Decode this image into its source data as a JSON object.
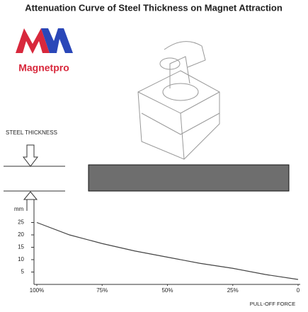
{
  "chart_data": {
    "type": "line",
    "title": "Attenuation Curve of Steel Thickness on Magnet Attraction",
    "brand": "Magnetpro",
    "annotations": [
      "STEEL THICKNESS"
    ],
    "y_label": "mm",
    "x_label": "PULL-OFF FORCE",
    "x": [
      100,
      87.5,
      75,
      62.5,
      50,
      37.5,
      25,
      12.5,
      0
    ],
    "series": [
      {
        "name": "Steel thickness",
        "color": "#444444",
        "values": [
          25,
          20,
          16.5,
          13.5,
          11,
          8.5,
          6.5,
          4,
          2
        ]
      }
    ],
    "xlim": [
      100,
      0
    ],
    "ylim": [
      0,
      30
    ],
    "xticks": [
      {
        "value": 100,
        "label": "100%"
      },
      {
        "value": 75,
        "label": "75%"
      },
      {
        "value": 50,
        "label": "50%"
      },
      {
        "value": 25,
        "label": "25%"
      },
      0
    ],
    "yticks": [
      5,
      10,
      15,
      20,
      25
    ],
    "grid": false
  }
}
